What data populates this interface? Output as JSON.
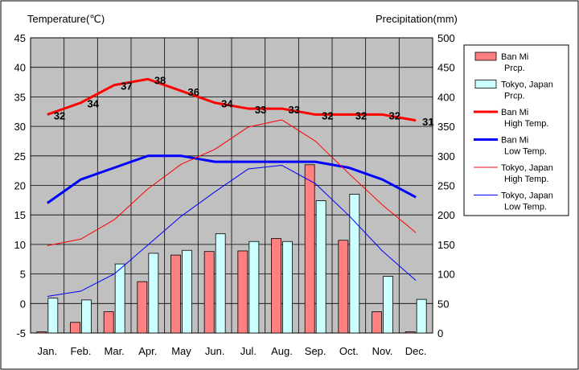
{
  "chart_data": {
    "type": "bar+line",
    "left_axis_label": "Temperature(℃)",
    "right_axis_label": "Precipitation(mm)",
    "categories": [
      "Jan.",
      "Feb.",
      "Mar.",
      "Apr.",
      "May",
      "Jun.",
      "Jul.",
      "Aug.",
      "Sep.",
      "Oct.",
      "Nov.",
      "Dec."
    ],
    "left_ylim": [
      -5,
      45
    ],
    "left_ticks": [
      -5,
      0,
      5,
      10,
      15,
      20,
      25,
      30,
      35,
      40,
      45
    ],
    "right_ylim": [
      0,
      500
    ],
    "right_ticks": [
      0,
      50,
      100,
      150,
      200,
      250,
      300,
      350,
      400,
      450,
      500
    ],
    "grid": true,
    "plot_background": "#c0c0c0",
    "legend_position": "right",
    "bar_series": [
      {
        "legend_lines": [
          "Ban Mi",
          "Prcp."
        ],
        "color": "#ff8080",
        "values": [
          2,
          18,
          36,
          87,
          132,
          138,
          139,
          160,
          285,
          157,
          36,
          2
        ]
      },
      {
        "legend_lines": [
          "Tokyo, Japan",
          "Prcp."
        ],
        "color": "#ccffff",
        "values": [
          59,
          56,
          117,
          135,
          140,
          168,
          155,
          155,
          224,
          235,
          96,
          57
        ]
      }
    ],
    "line_series": [
      {
        "legend_lines": [
          "Ban Mi",
          "High Temp."
        ],
        "color": "#ff0000",
        "width": 3,
        "values": [
          32,
          34,
          37,
          38,
          36,
          34,
          33,
          33,
          32,
          32,
          32,
          31
        ],
        "data_labels": [
          "32",
          "34",
          "37",
          "38",
          "36",
          "34",
          "33",
          "33",
          "32",
          "32",
          "32",
          "31"
        ]
      },
      {
        "legend_lines": [
          "Ban Mi",
          "Low Temp."
        ],
        "color": "#0000ff",
        "width": 3,
        "values": [
          17,
          21,
          23,
          25,
          25,
          24,
          24,
          24,
          24,
          23,
          21,
          18
        ]
      },
      {
        "legend_lines": [
          "Tokyo, Japan",
          "High Temp."
        ],
        "color": "#ff0000",
        "width": 1,
        "values": [
          9.8,
          10.9,
          14.2,
          19.4,
          23.6,
          26.1,
          29.9,
          31.1,
          27.5,
          22.0,
          16.7,
          12.0
        ]
      },
      {
        "legend_lines": [
          "Tokyo, Japan",
          "Low Temp."
        ],
        "color": "#0000ff",
        "width": 1,
        "values": [
          1.2,
          2.1,
          5.0,
          9.9,
          14.8,
          18.9,
          22.8,
          23.4,
          20.3,
          14.9,
          8.9,
          3.9
        ]
      }
    ]
  }
}
